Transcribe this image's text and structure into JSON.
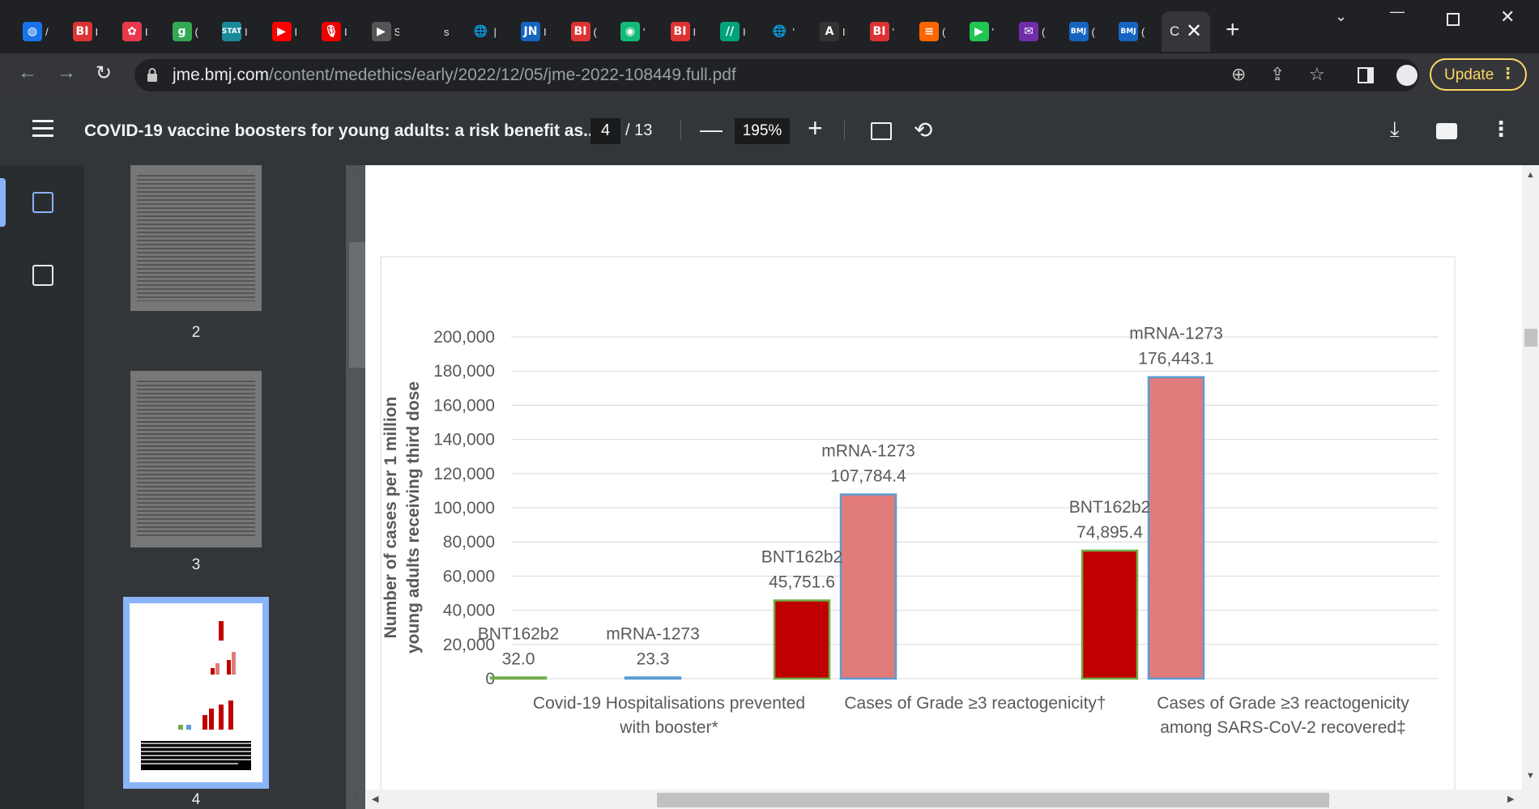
{
  "browser": {
    "tabs": [
      {
        "icon": "globe-icon",
        "text": "/",
        "color": "#1a73e8",
        "glyph": "◍"
      },
      {
        "icon": "bi-icon",
        "text": "I",
        "color": "#d33",
        "glyph": "BI"
      },
      {
        "icon": "pinwheel-icon",
        "text": "I",
        "color": "#e8394d",
        "glyph": "✿"
      },
      {
        "icon": "g-icon",
        "text": "(",
        "color": "#34a853",
        "glyph": "g"
      },
      {
        "icon": "stat-icon",
        "text": "I",
        "color": "#1a8a9a",
        "glyph": "STAT"
      },
      {
        "icon": "youtube-icon",
        "text": "I",
        "color": "#f00",
        "glyph": "▶"
      },
      {
        "icon": "podcast-icon",
        "text": "I",
        "color": "#e00",
        "glyph": "🎙"
      },
      {
        "icon": "arrow-icon",
        "text": "S",
        "color": "#555",
        "glyph": "▶"
      },
      {
        "icon": "blank-icon",
        "text": "s",
        "color": "transparent",
        "glyph": ""
      },
      {
        "icon": "globe-icon",
        "text": "|",
        "color": "transparent",
        "glyph": "🌐"
      },
      {
        "icon": "jn-icon",
        "text": "I",
        "color": "#1565c0",
        "glyph": "JN"
      },
      {
        "icon": "bi-icon",
        "text": "(",
        "color": "#d33",
        "glyph": "BI"
      },
      {
        "icon": "circle-icon",
        "text": "'",
        "color": "#1b7",
        "glyph": "◉"
      },
      {
        "icon": "bi-icon",
        "text": "I",
        "color": "#d33",
        "glyph": "BI"
      },
      {
        "icon": "stripe-icon",
        "text": "I",
        "color": "#00a37a",
        "glyph": "//"
      },
      {
        "icon": "globe-icon",
        "text": "'",
        "color": "transparent",
        "glyph": "🌐"
      },
      {
        "icon": "atlantic-icon",
        "text": "I",
        "color": "#333",
        "glyph": "A"
      },
      {
        "icon": "bi-icon",
        "text": "'",
        "color": "#d33",
        "glyph": "BI"
      },
      {
        "icon": "bookmark-icon",
        "text": "(",
        "color": "#f60",
        "glyph": "≡"
      },
      {
        "icon": "play-icon",
        "text": "'",
        "color": "#23c552",
        "glyph": "▶"
      },
      {
        "icon": "mail-icon",
        "text": "(",
        "color": "#6f2da8",
        "glyph": "✉"
      },
      {
        "icon": "bmj-icon",
        "text": "(",
        "color": "#1565c0",
        "glyph": "BMJ"
      },
      {
        "icon": "bmj-icon",
        "text": "(",
        "color": "#1565c0",
        "glyph": "BMJ"
      }
    ],
    "active_tab_text": "C",
    "url_host": "jme.bmj.com",
    "url_path": "/content/medethics/early/2022/12/05/jme-2022-108449.full.pdf",
    "update_label": "Update"
  },
  "pdf": {
    "title": "COVID-19 vaccine boosters for young adults: a risk benefit as...",
    "page_current": "4",
    "page_total": "/ 13",
    "zoom": "195%",
    "thumbnails": [
      {
        "number": "2"
      },
      {
        "number": "3"
      },
      {
        "number": "4"
      }
    ]
  },
  "chart_data": {
    "type": "bar",
    "ylabel_line1": "Number of cases per 1 million",
    "ylabel_line2": "young adults receiving third dose",
    "ylim": [
      0,
      200000
    ],
    "yticks": [
      "200,000",
      "180,000",
      "160,000",
      "140,000",
      "120,000",
      "100,000",
      "80,000",
      "60,000",
      "40,000",
      "20,000",
      "0"
    ],
    "grid": true,
    "categories": [
      {
        "line1": "Covid-19 Hospitalisations prevented",
        "line2": "with booster*"
      },
      {
        "line1": "Cases of Grade ≥3 reactogenicity†",
        "line2": ""
      },
      {
        "line1": "Cases of Grade ≥3 reactogenicity",
        "line2": "among SARS-CoV-2 recovered‡"
      }
    ],
    "series": [
      {
        "name": "BNT162b2",
        "fill": "#c00000",
        "stroke": "#70ad47",
        "values": [
          32.0,
          45751.6,
          74895.4
        ],
        "labels": [
          "32.0",
          "45,751.6",
          "74,895.4"
        ]
      },
      {
        "name": "mRNA-1273",
        "fill": "#e07b7b",
        "stroke": "#5b9bd5",
        "values": [
          23.3,
          107784.4,
          176443.1
        ],
        "labels": [
          "23.3",
          "107,784.4",
          "176,443.1"
        ]
      }
    ]
  }
}
